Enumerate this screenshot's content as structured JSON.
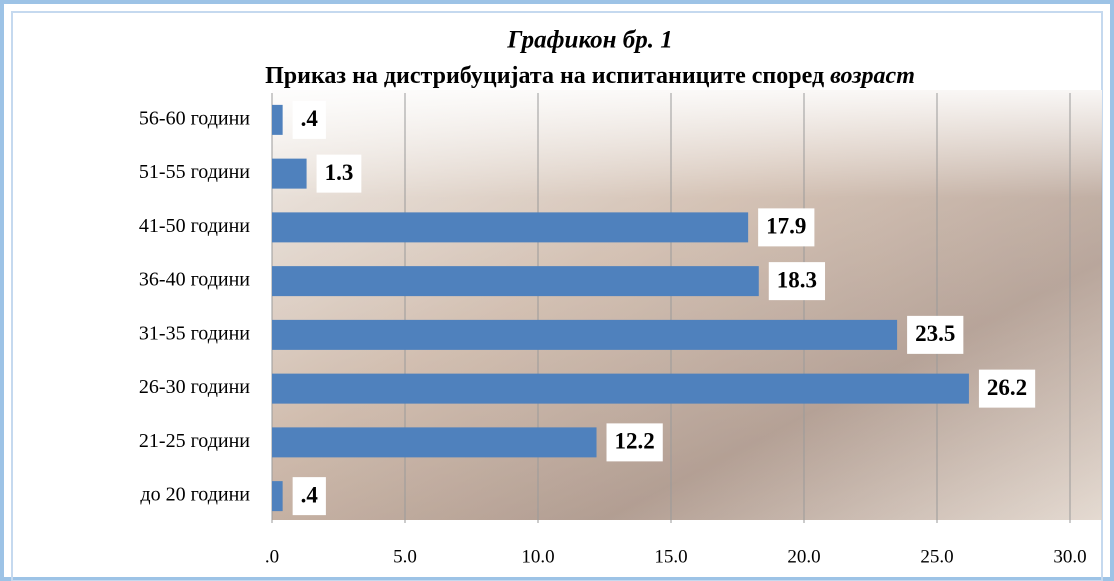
{
  "chart_data": {
    "type": "hbar",
    "title": "Графикон бр. 1",
    "subtitle": "Приказ на дистрибуцијата на испитаниците според",
    "subtitle_emphasis": "возраст",
    "categories": [
      "до 20 години",
      "21-25 години",
      "26-30 години",
      "31-35 години",
      "36-40 години",
      "41-50 години",
      "51-55 години",
      "56-60 години"
    ],
    "values": [
      0.4,
      12.2,
      26.2,
      23.5,
      18.3,
      17.9,
      1.3,
      0.4
    ],
    "value_labels": [
      ".4",
      "12.2",
      "26.2",
      "23.5",
      "18.3",
      "17.9",
      "1.3",
      ".4"
    ],
    "color": "#4f81bd",
    "xlim": [
      0,
      30
    ],
    "xticks": [
      {
        "value": 0,
        "label": ".0"
      },
      {
        "value": 5,
        "label": "5.0"
      },
      {
        "value": 10,
        "label": "10.0"
      },
      {
        "value": 15,
        "label": "15.0"
      },
      {
        "value": 20,
        "label": "20.0"
      },
      {
        "value": 25,
        "label": "25.0"
      },
      {
        "value": 30,
        "label": "30.0"
      }
    ],
    "grid": true
  }
}
